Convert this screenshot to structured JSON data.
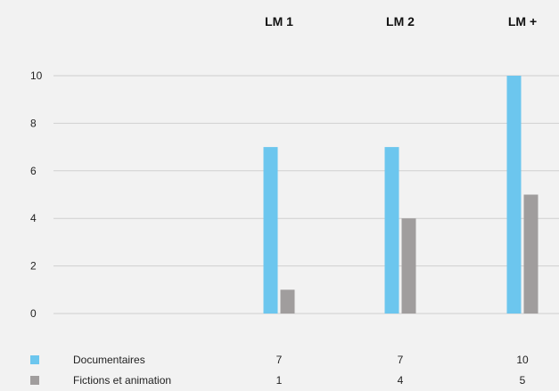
{
  "chart_data": {
    "type": "bar",
    "categories": [
      "LM 1",
      "LM 2",
      "LM +"
    ],
    "series": [
      {
        "name": "Documentaires",
        "values": [
          7,
          7,
          10
        ],
        "color": "#6cc6ee"
      },
      {
        "name": "Fictions et animation",
        "values": [
          1,
          4,
          5
        ],
        "color": "#a09d9d"
      }
    ],
    "ylim": [
      0,
      10
    ],
    "yticks": [
      0,
      2,
      4,
      6,
      8,
      10
    ],
    "grid": true,
    "legend": "bottom-left data table",
    "title": "",
    "xlabel": "",
    "ylabel": ""
  }
}
